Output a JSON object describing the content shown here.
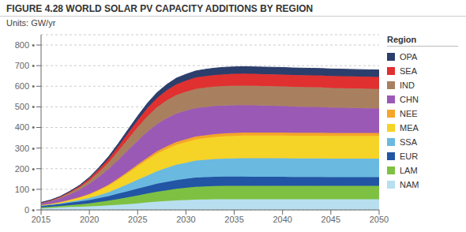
{
  "chart_data": {
    "type": "area",
    "title": "FIGURE 4.28 WORLD SOLAR PV CAPACITY ADDITIONS BY REGION",
    "subtitle": "Units: GW/yr",
    "legend_title": "Region",
    "stacked": true,
    "grid": true,
    "legend": "right",
    "x": [
      2015,
      2016,
      2017,
      2018,
      2019,
      2020,
      2021,
      2022,
      2023,
      2024,
      2025,
      2026,
      2027,
      2028,
      2029,
      2030,
      2031,
      2032,
      2033,
      2034,
      2035,
      2036,
      2037,
      2038,
      2039,
      2040,
      2041,
      2042,
      2043,
      2044,
      2045,
      2046,
      2047,
      2048,
      2049,
      2050
    ],
    "xlim": [
      2015,
      2050
    ],
    "xticks": [
      2015,
      2020,
      2025,
      2030,
      2035,
      2040,
      2045,
      2050
    ],
    "ylim": [
      0,
      850
    ],
    "yticks": [
      {
        "value": 0,
        "label": "0 •"
      },
      {
        "value": 100,
        "label": "100 •"
      },
      {
        "value": 200,
        "label": "200 •"
      },
      {
        "value": 300,
        "label": "300 •"
      },
      {
        "value": 400,
        "label": "400 •"
      },
      {
        "value": 500,
        "label": "500 •"
      },
      {
        "value": 600,
        "label": "600 •"
      },
      {
        "value": 700,
        "label": "700 •"
      },
      {
        "value": 800,
        "label": "800 •"
      }
    ],
    "series": [
      {
        "name": "NAM",
        "color": "#b8dff0",
        "values": [
          8,
          10,
          12,
          14,
          15,
          17,
          19,
          22,
          25,
          28,
          32,
          36,
          40,
          43,
          46,
          48,
          50,
          51,
          52,
          52,
          52,
          52,
          52,
          52,
          52,
          52,
          52,
          52,
          52,
          52,
          52,
          52,
          52,
          52,
          52,
          52
        ]
      },
      {
        "name": "LAM",
        "color": "#7ec142",
        "values": [
          4,
          5,
          7,
          9,
          12,
          15,
          19,
          23,
          28,
          33,
          38,
          43,
          48,
          52,
          56,
          59,
          62,
          63,
          64,
          65,
          65,
          65,
          65,
          65,
          65,
          65,
          65,
          65,
          65,
          65,
          65,
          65,
          65,
          65,
          65,
          65
        ]
      },
      {
        "name": "EUR",
        "color": "#2255a4",
        "values": [
          8,
          9,
          10,
          12,
          14,
          16,
          19,
          22,
          26,
          30,
          33,
          36,
          39,
          41,
          43,
          44,
          45,
          45,
          45,
          45,
          45,
          45,
          44,
          44,
          44,
          44,
          43,
          43,
          43,
          43,
          42,
          42,
          42,
          42,
          42,
          42
        ]
      },
      {
        "name": "SSA",
        "color": "#6ab9e0",
        "values": [
          1,
          2,
          3,
          5,
          7,
          10,
          14,
          19,
          26,
          34,
          43,
          52,
          61,
          68,
          74,
          78,
          82,
          84,
          86,
          87,
          88,
          89,
          90,
          90,
          90,
          90,
          90,
          90,
          90,
          90,
          90,
          90,
          90,
          90,
          90,
          90
        ]
      },
      {
        "name": "MEA",
        "color": "#f5d327",
        "values": [
          2,
          3,
          5,
          8,
          12,
          17,
          24,
          32,
          42,
          54,
          66,
          76,
          85,
          92,
          97,
          100,
          103,
          105,
          107,
          108,
          109,
          110,
          110,
          110,
          110,
          110,
          110,
          110,
          110,
          110,
          110,
          110,
          110,
          110,
          110,
          110
        ]
      },
      {
        "name": "NEE",
        "color": "#f5a528",
        "values": [
          1,
          1,
          1,
          2,
          2,
          3,
          4,
          5,
          6,
          7,
          8,
          10,
          11,
          12,
          13,
          14,
          14,
          14,
          14,
          14,
          14,
          14,
          14,
          14,
          14,
          14,
          14,
          14,
          14,
          14,
          14,
          14,
          14,
          14,
          14,
          14
        ]
      },
      {
        "name": "CHN",
        "color": "#9b59b6",
        "values": [
          8,
          12,
          18,
          26,
          36,
          48,
          62,
          76,
          90,
          104,
          116,
          126,
          132,
          136,
          138,
          138,
          138,
          137,
          136,
          135,
          134,
          133,
          132,
          131,
          130,
          129,
          128,
          127,
          126,
          125,
          124,
          123,
          122,
          121,
          120,
          119
        ]
      },
      {
        "name": "IND",
        "color": "#a88060",
        "values": [
          2,
          3,
          5,
          8,
          12,
          17,
          24,
          32,
          43,
          54,
          65,
          75,
          82,
          87,
          90,
          92,
          93,
          94,
          94,
          95,
          95,
          95,
          95,
          95,
          95,
          95,
          95,
          95,
          95,
          95,
          95,
          95,
          95,
          95,
          95,
          95
        ]
      },
      {
        "name": "SEA",
        "color": "#e03030",
        "values": [
          1,
          2,
          3,
          4,
          6,
          9,
          13,
          17,
          22,
          28,
          34,
          40,
          45,
          49,
          52,
          54,
          55,
          56,
          57,
          57,
          58,
          58,
          58,
          58,
          58,
          58,
          58,
          58,
          58,
          58,
          58,
          58,
          58,
          58,
          58,
          58
        ]
      },
      {
        "name": "OPA",
        "color": "#2c3e6b",
        "values": [
          1,
          1,
          2,
          3,
          4,
          6,
          8,
          11,
          14,
          17,
          20,
          23,
          26,
          28,
          30,
          31,
          32,
          33,
          33,
          34,
          34,
          34,
          34,
          34,
          34,
          34,
          34,
          34,
          34,
          34,
          34,
          34,
          34,
          34,
          34,
          34
        ]
      }
    ]
  }
}
